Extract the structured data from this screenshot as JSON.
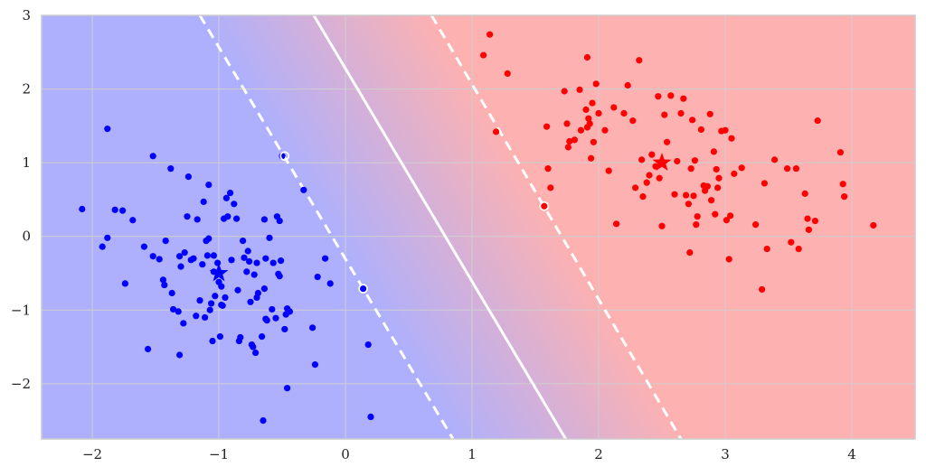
{
  "chart_data": {
    "type": "scatter",
    "title": "",
    "xlabel": "",
    "ylabel": "",
    "xlim": [
      -2.4,
      4.5
    ],
    "ylim": [
      -2.75,
      3.0
    ],
    "grid": true,
    "x_ticks": [
      -2,
      -1,
      0,
      1,
      2,
      3,
      4
    ],
    "x_tick_labels": [
      "−2",
      "−1",
      "0",
      "1",
      "2",
      "3",
      "4"
    ],
    "y_ticks": [
      -2,
      -1,
      0,
      1,
      2,
      3
    ],
    "y_tick_labels": [
      "−2",
      "−1",
      "0",
      "1",
      "2",
      "3"
    ],
    "colors": {
      "class_a": "#0000ff",
      "class_b": "#ff0000",
      "region_a": "#aeb0fd",
      "region_b": "#fdb1b1",
      "boundary": "#ffffff",
      "grid": "#cfcfcf",
      "frame": "#cccccc"
    },
    "decision_boundary": {
      "solid": [
        [
          -0.25,
          3.0
        ],
        [
          1.74,
          -2.75
        ]
      ],
      "margin_lower": [
        [
          -1.15,
          3.0
        ],
        [
          0.85,
          -2.75
        ]
      ],
      "margin_upper": [
        [
          0.68,
          3.0
        ],
        [
          2.65,
          -2.75
        ]
      ]
    },
    "support_vectors": [
      {
        "x": -0.48,
        "y": 1.09
      },
      {
        "x": 0.14,
        "y": -0.71
      },
      {
        "x": 1.57,
        "y": 0.41
      }
    ],
    "centers": [
      {
        "class": "a",
        "x": -1.0,
        "y": -0.5
      },
      {
        "class": "b",
        "x": 2.5,
        "y": 1.0
      }
    ],
    "series": [
      {
        "class": "a",
        "points": [
          [
            -2.08,
            0.37
          ],
          [
            -1.92,
            -0.14
          ],
          [
            -1.88,
            -0.02
          ],
          [
            -1.88,
            1.46
          ],
          [
            -1.82,
            0.36
          ],
          [
            -1.76,
            0.35
          ],
          [
            -1.74,
            -0.64
          ],
          [
            -1.68,
            0.22
          ],
          [
            -1.59,
            -0.14
          ],
          [
            -1.56,
            -1.53
          ],
          [
            -1.52,
            -0.27
          ],
          [
            -1.52,
            1.09
          ],
          [
            -1.47,
            -0.31
          ],
          [
            -1.44,
            -0.59
          ],
          [
            -1.43,
            -0.66
          ],
          [
            -1.42,
            -0.06
          ],
          [
            -1.38,
            0.92
          ],
          [
            -1.37,
            -0.77
          ],
          [
            -1.36,
            -0.99
          ],
          [
            -1.32,
            -1.02
          ],
          [
            -1.31,
            -0.27
          ],
          [
            -1.31,
            -1.61
          ],
          [
            -1.3,
            -0.41
          ],
          [
            -1.28,
            -1.18
          ],
          [
            -1.27,
            -0.22
          ],
          [
            -1.25,
            0.27
          ],
          [
            -1.24,
            0.81
          ],
          [
            -1.22,
            -0.32
          ],
          [
            -1.2,
            -0.3
          ],
          [
            -1.18,
            -1.08
          ],
          [
            -1.17,
            0.23
          ],
          [
            -1.15,
            -0.87
          ],
          [
            -1.13,
            -0.38
          ],
          [
            -1.12,
            0.47
          ],
          [
            -1.11,
            -1.1
          ],
          [
            -1.1,
            -0.06
          ],
          [
            -1.09,
            -0.26
          ],
          [
            -1.08,
            0.7
          ],
          [
            -1.08,
            -0.03
          ],
          [
            -1.07,
            -1.0
          ],
          [
            -1.06,
            -0.91
          ],
          [
            -1.05,
            -1.42
          ],
          [
            -1.04,
            -0.26
          ],
          [
            -1.04,
            -0.48
          ],
          [
            -1.03,
            -0.81
          ],
          [
            -1.01,
            -0.36
          ],
          [
            -1.0,
            -0.62
          ],
          [
            -0.99,
            -1.36
          ],
          [
            -0.98,
            -0.68
          ],
          [
            -0.98,
            -0.93
          ],
          [
            -0.97,
            -0.94
          ],
          [
            -0.96,
            0.24
          ],
          [
            -0.95,
            -0.83
          ],
          [
            -0.94,
            0.52
          ],
          [
            -0.93,
            0.27
          ],
          [
            -0.91,
            0.59
          ],
          [
            -0.9,
            -0.32
          ],
          [
            -0.88,
            0.44
          ],
          [
            -0.86,
            0.24
          ],
          [
            -0.85,
            -0.73
          ],
          [
            -0.84,
            -1.42
          ],
          [
            -0.83,
            -1.37
          ],
          [
            -0.81,
            -0.06
          ],
          [
            -0.8,
            -0.29
          ],
          [
            -0.78,
            -0.48
          ],
          [
            -0.77,
            -0.2
          ],
          [
            -0.76,
            -0.34
          ],
          [
            -0.75,
            -0.89
          ],
          [
            -0.74,
            -1.47
          ],
          [
            -0.73,
            -1.5
          ],
          [
            -0.72,
            -0.52
          ],
          [
            -0.71,
            -1.58
          ],
          [
            -0.7,
            -0.36
          ],
          [
            -0.7,
            -0.83
          ],
          [
            -0.69,
            -0.77
          ],
          [
            -0.66,
            -1.36
          ],
          [
            -0.65,
            -2.5
          ],
          [
            -0.64,
            0.23
          ],
          [
            -0.64,
            -0.71
          ],
          [
            -0.63,
            -0.3
          ],
          [
            -0.63,
            -1.12
          ],
          [
            -0.62,
            -1.14
          ],
          [
            -0.6,
            -0.02
          ],
          [
            -0.58,
            -0.99
          ],
          [
            -0.57,
            -0.36
          ],
          [
            -0.55,
            -1.11
          ],
          [
            -0.54,
            0.27
          ],
          [
            -0.53,
            -0.51
          ],
          [
            -0.52,
            -0.54
          ],
          [
            -0.52,
            0.21
          ],
          [
            -0.51,
            -0.33
          ],
          [
            -0.5,
            1.09
          ],
          [
            -0.48,
            -1.26
          ],
          [
            -0.47,
            -1.06
          ],
          [
            -0.46,
            -0.98
          ],
          [
            -0.46,
            -2.06
          ],
          [
            -0.44,
            -1.02
          ],
          [
            -0.33,
            0.63
          ],
          [
            -0.26,
            -1.24
          ],
          [
            -0.24,
            -1.74
          ],
          [
            -0.22,
            -0.55
          ],
          [
            -0.16,
            -0.3
          ],
          [
            -0.12,
            -0.64
          ],
          [
            0.14,
            -0.71
          ],
          [
            0.18,
            -1.47
          ],
          [
            0.2,
            -2.45
          ]
        ]
      },
      {
        "class": "b",
        "points": [
          [
            1.09,
            2.46
          ],
          [
            1.14,
            2.74
          ],
          [
            1.19,
            1.42
          ],
          [
            1.28,
            2.21
          ],
          [
            1.57,
            0.41
          ],
          [
            1.59,
            1.49
          ],
          [
            1.6,
            0.92
          ],
          [
            1.62,
            0.66
          ],
          [
            1.73,
            1.97
          ],
          [
            1.75,
            1.53
          ],
          [
            1.76,
            1.21
          ],
          [
            1.77,
            1.29
          ],
          [
            1.81,
            1.31
          ],
          [
            1.85,
            1.99
          ],
          [
            1.86,
            1.44
          ],
          [
            1.9,
            1.72
          ],
          [
            1.91,
            2.43
          ],
          [
            1.91,
            1.48
          ],
          [
            1.92,
            1.6
          ],
          [
            1.93,
            1.53
          ],
          [
            1.94,
            1.06
          ],
          [
            1.95,
            1.81
          ],
          [
            1.96,
            1.28
          ],
          [
            1.98,
            2.07
          ],
          [
            2.0,
            1.67
          ],
          [
            2.05,
            1.44
          ],
          [
            2.08,
            0.89
          ],
          [
            2.12,
            1.75
          ],
          [
            2.14,
            0.17
          ],
          [
            2.2,
            1.67
          ],
          [
            2.23,
            2.05
          ],
          [
            2.27,
            1.57
          ],
          [
            2.29,
            0.66
          ],
          [
            2.32,
            2.39
          ],
          [
            2.34,
            1.04
          ],
          [
            2.35,
            0.54
          ],
          [
            2.38,
            0.73
          ],
          [
            2.4,
            0.83
          ],
          [
            2.42,
            1.11
          ],
          [
            2.45,
            0.95
          ],
          [
            2.47,
            1.9
          ],
          [
            2.48,
            0.79
          ],
          [
            2.5,
            0.14
          ],
          [
            2.52,
            1.65
          ],
          [
            2.54,
            1.28
          ],
          [
            2.57,
            1.91
          ],
          [
            2.6,
            0.57
          ],
          [
            2.62,
            1.02
          ],
          [
            2.65,
            1.67
          ],
          [
            2.67,
            1.87
          ],
          [
            2.69,
            0.56
          ],
          [
            2.71,
            0.44
          ],
          [
            2.72,
            -0.22
          ],
          [
            2.73,
            0.92
          ],
          [
            2.74,
            1.58
          ],
          [
            2.75,
            0.55
          ],
          [
            2.76,
            1.03
          ],
          [
            2.77,
            0.16
          ],
          [
            2.78,
            0.27
          ],
          [
            2.81,
            1.45
          ],
          [
            2.83,
            0.69
          ],
          [
            2.84,
            0.62
          ],
          [
            2.86,
            0.68
          ],
          [
            2.88,
            1.66
          ],
          [
            2.89,
            0.49
          ],
          [
            2.91,
            1.15
          ],
          [
            2.92,
            0.3
          ],
          [
            2.93,
            0.91
          ],
          [
            2.94,
            0.66
          ],
          [
            2.95,
            0.79
          ],
          [
            2.97,
            1.43
          ],
          [
            3.0,
            1.44
          ],
          [
            3.01,
            0.22
          ],
          [
            3.03,
            -0.31
          ],
          [
            3.04,
            0.28
          ],
          [
            3.05,
            1.33
          ],
          [
            3.07,
            0.85
          ],
          [
            3.13,
            0.93
          ],
          [
            3.24,
            0.16
          ],
          [
            3.29,
            -0.72
          ],
          [
            3.31,
            0.72
          ],
          [
            3.33,
            -0.17
          ],
          [
            3.39,
            1.04
          ],
          [
            3.49,
            0.92
          ],
          [
            3.52,
            -0.08
          ],
          [
            3.56,
            0.92
          ],
          [
            3.58,
            -0.17
          ],
          [
            3.63,
            0.58
          ],
          [
            3.65,
            0.24
          ],
          [
            3.66,
            0.09
          ],
          [
            3.71,
            0.21
          ],
          [
            3.73,
            1.57
          ],
          [
            3.91,
            1.14
          ],
          [
            3.93,
            0.71
          ],
          [
            3.94,
            0.54
          ],
          [
            4.17,
            0.15
          ]
        ]
      }
    ]
  }
}
